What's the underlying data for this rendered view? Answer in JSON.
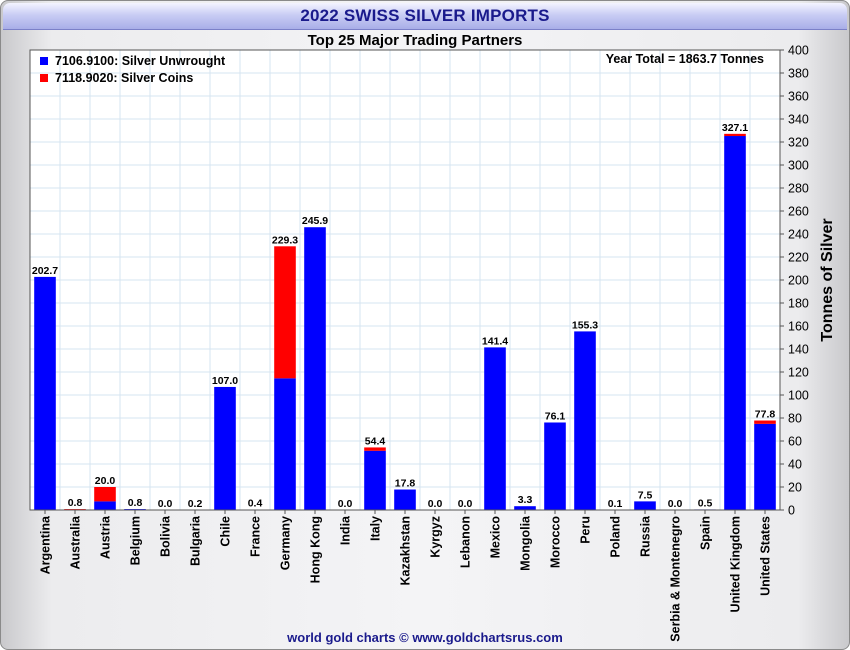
{
  "header": {
    "title": "2022 SWISS SILVER IMPORTS"
  },
  "footer": {
    "credit": "world gold charts © www.goldchartsrus.com"
  },
  "chart_data": {
    "type": "bar",
    "stacked": true,
    "title": "Top 25 Major Trading Partners",
    "annotation": "Year Total = 1863.7 Tonnes",
    "ylabel": "Tonnes of Silver",
    "ylim": [
      0,
      400
    ],
    "ytick_step": 20,
    "grid": true,
    "legend_position": "top-left",
    "categories": [
      "Argentina",
      "Australia",
      "Austria",
      "Belgium",
      "Bolivia",
      "Bulgaria",
      "Chile",
      "France",
      "Germany",
      "Hong Kong",
      "India",
      "Italy",
      "Kazakhstan",
      "Kyrgyz",
      "Lebanon",
      "Mexico",
      "Mongolia",
      "Morocco",
      "Peru",
      "Poland",
      "Russia",
      "Serbia & Montenegro",
      "Spain",
      "United Kingdom",
      "United States"
    ],
    "totals": [
      "202.7",
      "0.8",
      "20.0",
      "0.8",
      "0.0",
      "0.2",
      "107.0",
      "0.4",
      "229.3",
      "245.9",
      "0.0",
      "54.4",
      "17.8",
      "0.0",
      "0.0",
      "141.4",
      "3.3",
      "76.1",
      "155.3",
      "0.1",
      "7.5",
      "0.0",
      "0.5",
      "327.1",
      "77.8"
    ],
    "series": [
      {
        "name": "7106.9100: Silver Unwrought",
        "color": "#0000ff",
        "values": [
          202.7,
          0.0,
          7.5,
          0.8,
          0.0,
          0.2,
          107.0,
          0.0,
          114.5,
          245.9,
          0.0,
          51.5,
          17.8,
          0.0,
          0.0,
          141.4,
          3.3,
          76.1,
          155.3,
          0.0,
          7.5,
          0.0,
          0.5,
          325.2,
          74.9
        ]
      },
      {
        "name": "7118.9020: Silver Coins",
        "color": "#ff0000",
        "values": [
          0.0,
          0.8,
          12.5,
          0.0,
          0.0,
          0.0,
          0.0,
          0.4,
          114.8,
          0.0,
          0.0,
          2.9,
          0.0,
          0.0,
          0.0,
          0.0,
          0.0,
          0.0,
          0.0,
          0.1,
          0.0,
          0.0,
          0.0,
          1.9,
          2.9
        ]
      }
    ]
  }
}
